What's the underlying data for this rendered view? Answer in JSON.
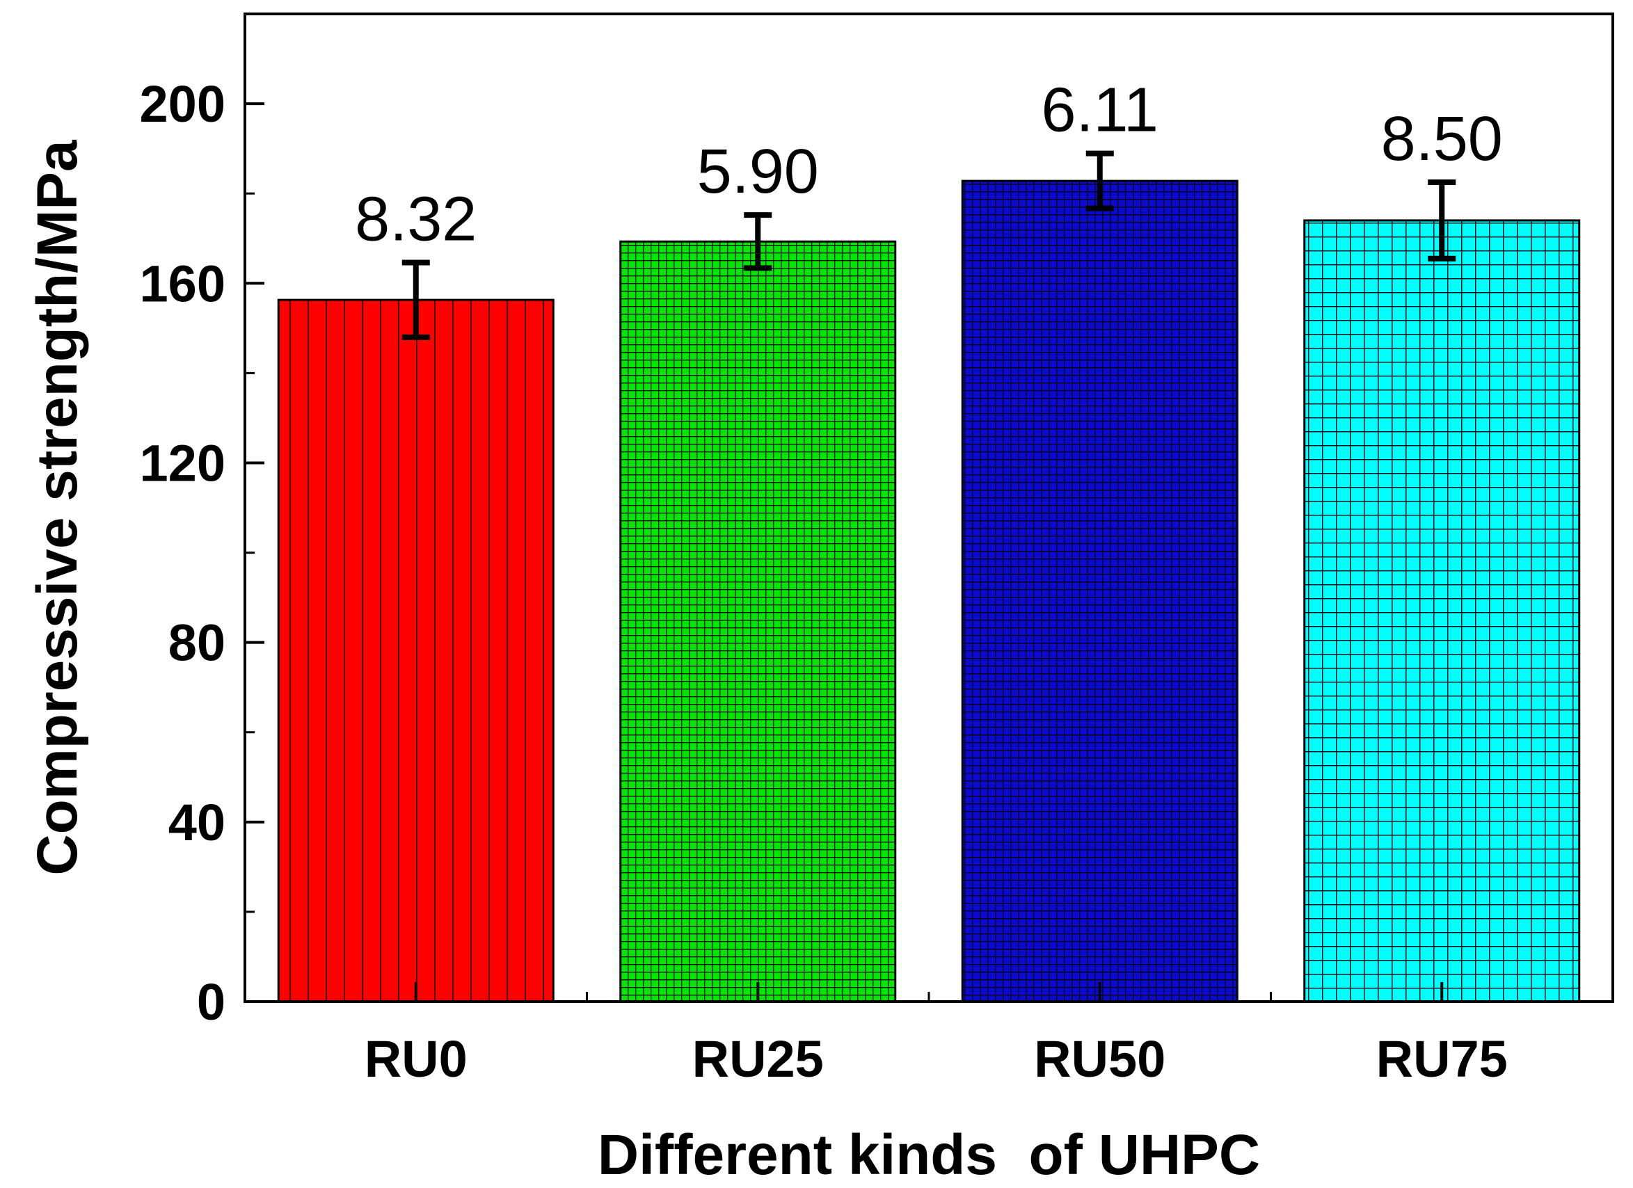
{
  "chart_data": {
    "type": "bar",
    "title": "",
    "xlabel": "Different kinds  of UHPC",
    "ylabel": "Compressive strength/MPa",
    "categories": [
      "RU0",
      "RU25",
      "RU50",
      "RU75"
    ],
    "values": [
      156.3,
      169.3,
      182.8,
      174.0
    ],
    "error": [
      8.32,
      5.9,
      6.11,
      8.5
    ],
    "data_labels": [
      "8.32",
      "5.90",
      "6.11",
      "8.50"
    ],
    "ylim": [
      0,
      220
    ],
    "yticks": [
      0,
      40,
      80,
      120,
      160,
      200
    ],
    "yticks_labels": [
      "0",
      "40",
      "80",
      "120",
      "160",
      "200"
    ],
    "grid": false,
    "legend": "none",
    "colors": [
      "#ff0000",
      "#00e800",
      "#0a0ad2",
      "#00ffff"
    ],
    "patterns": [
      "vertical",
      "dense-grid",
      "dense-grid",
      "grid"
    ]
  }
}
